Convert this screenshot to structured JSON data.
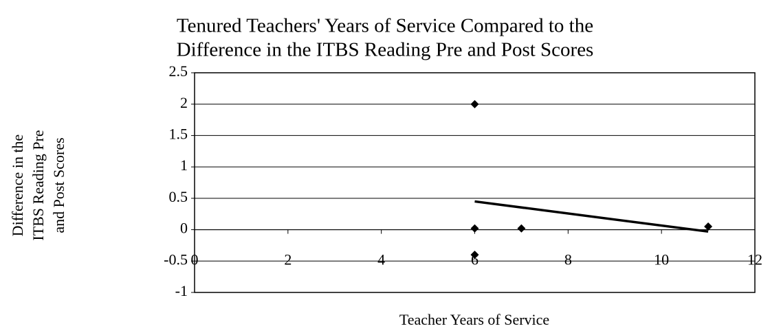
{
  "chart_data": {
    "type": "scatter",
    "title": [
      "Tenured Teachers' Years of Service Compared to the",
      "Difference in the ITBS Reading Pre and Post Scores"
    ],
    "x_label": "Teacher Years of Service",
    "y_label": [
      "Difference in the",
      "ITBS Reading Pre",
      "and Post Scores"
    ],
    "series": [
      {
        "name": "Difference",
        "color": "#000000",
        "x": [
          6,
          6,
          7,
          6,
          11
        ],
        "values": [
          2,
          0.02,
          0.02,
          -0.4,
          0.05
        ]
      }
    ],
    "trendline": {
      "x": [
        6,
        11
      ],
      "values": [
        0.45,
        -0.03
      ],
      "color": "#000000"
    },
    "xlim": [
      0,
      12
    ],
    "xticks": [
      0,
      2,
      4,
      6,
      8,
      10,
      12
    ],
    "ylim": [
      -1,
      2.5
    ],
    "yticks": [
      -1,
      -0.5,
      0,
      0.5,
      1,
      1.5,
      2,
      2.5
    ],
    "grid": true
  }
}
